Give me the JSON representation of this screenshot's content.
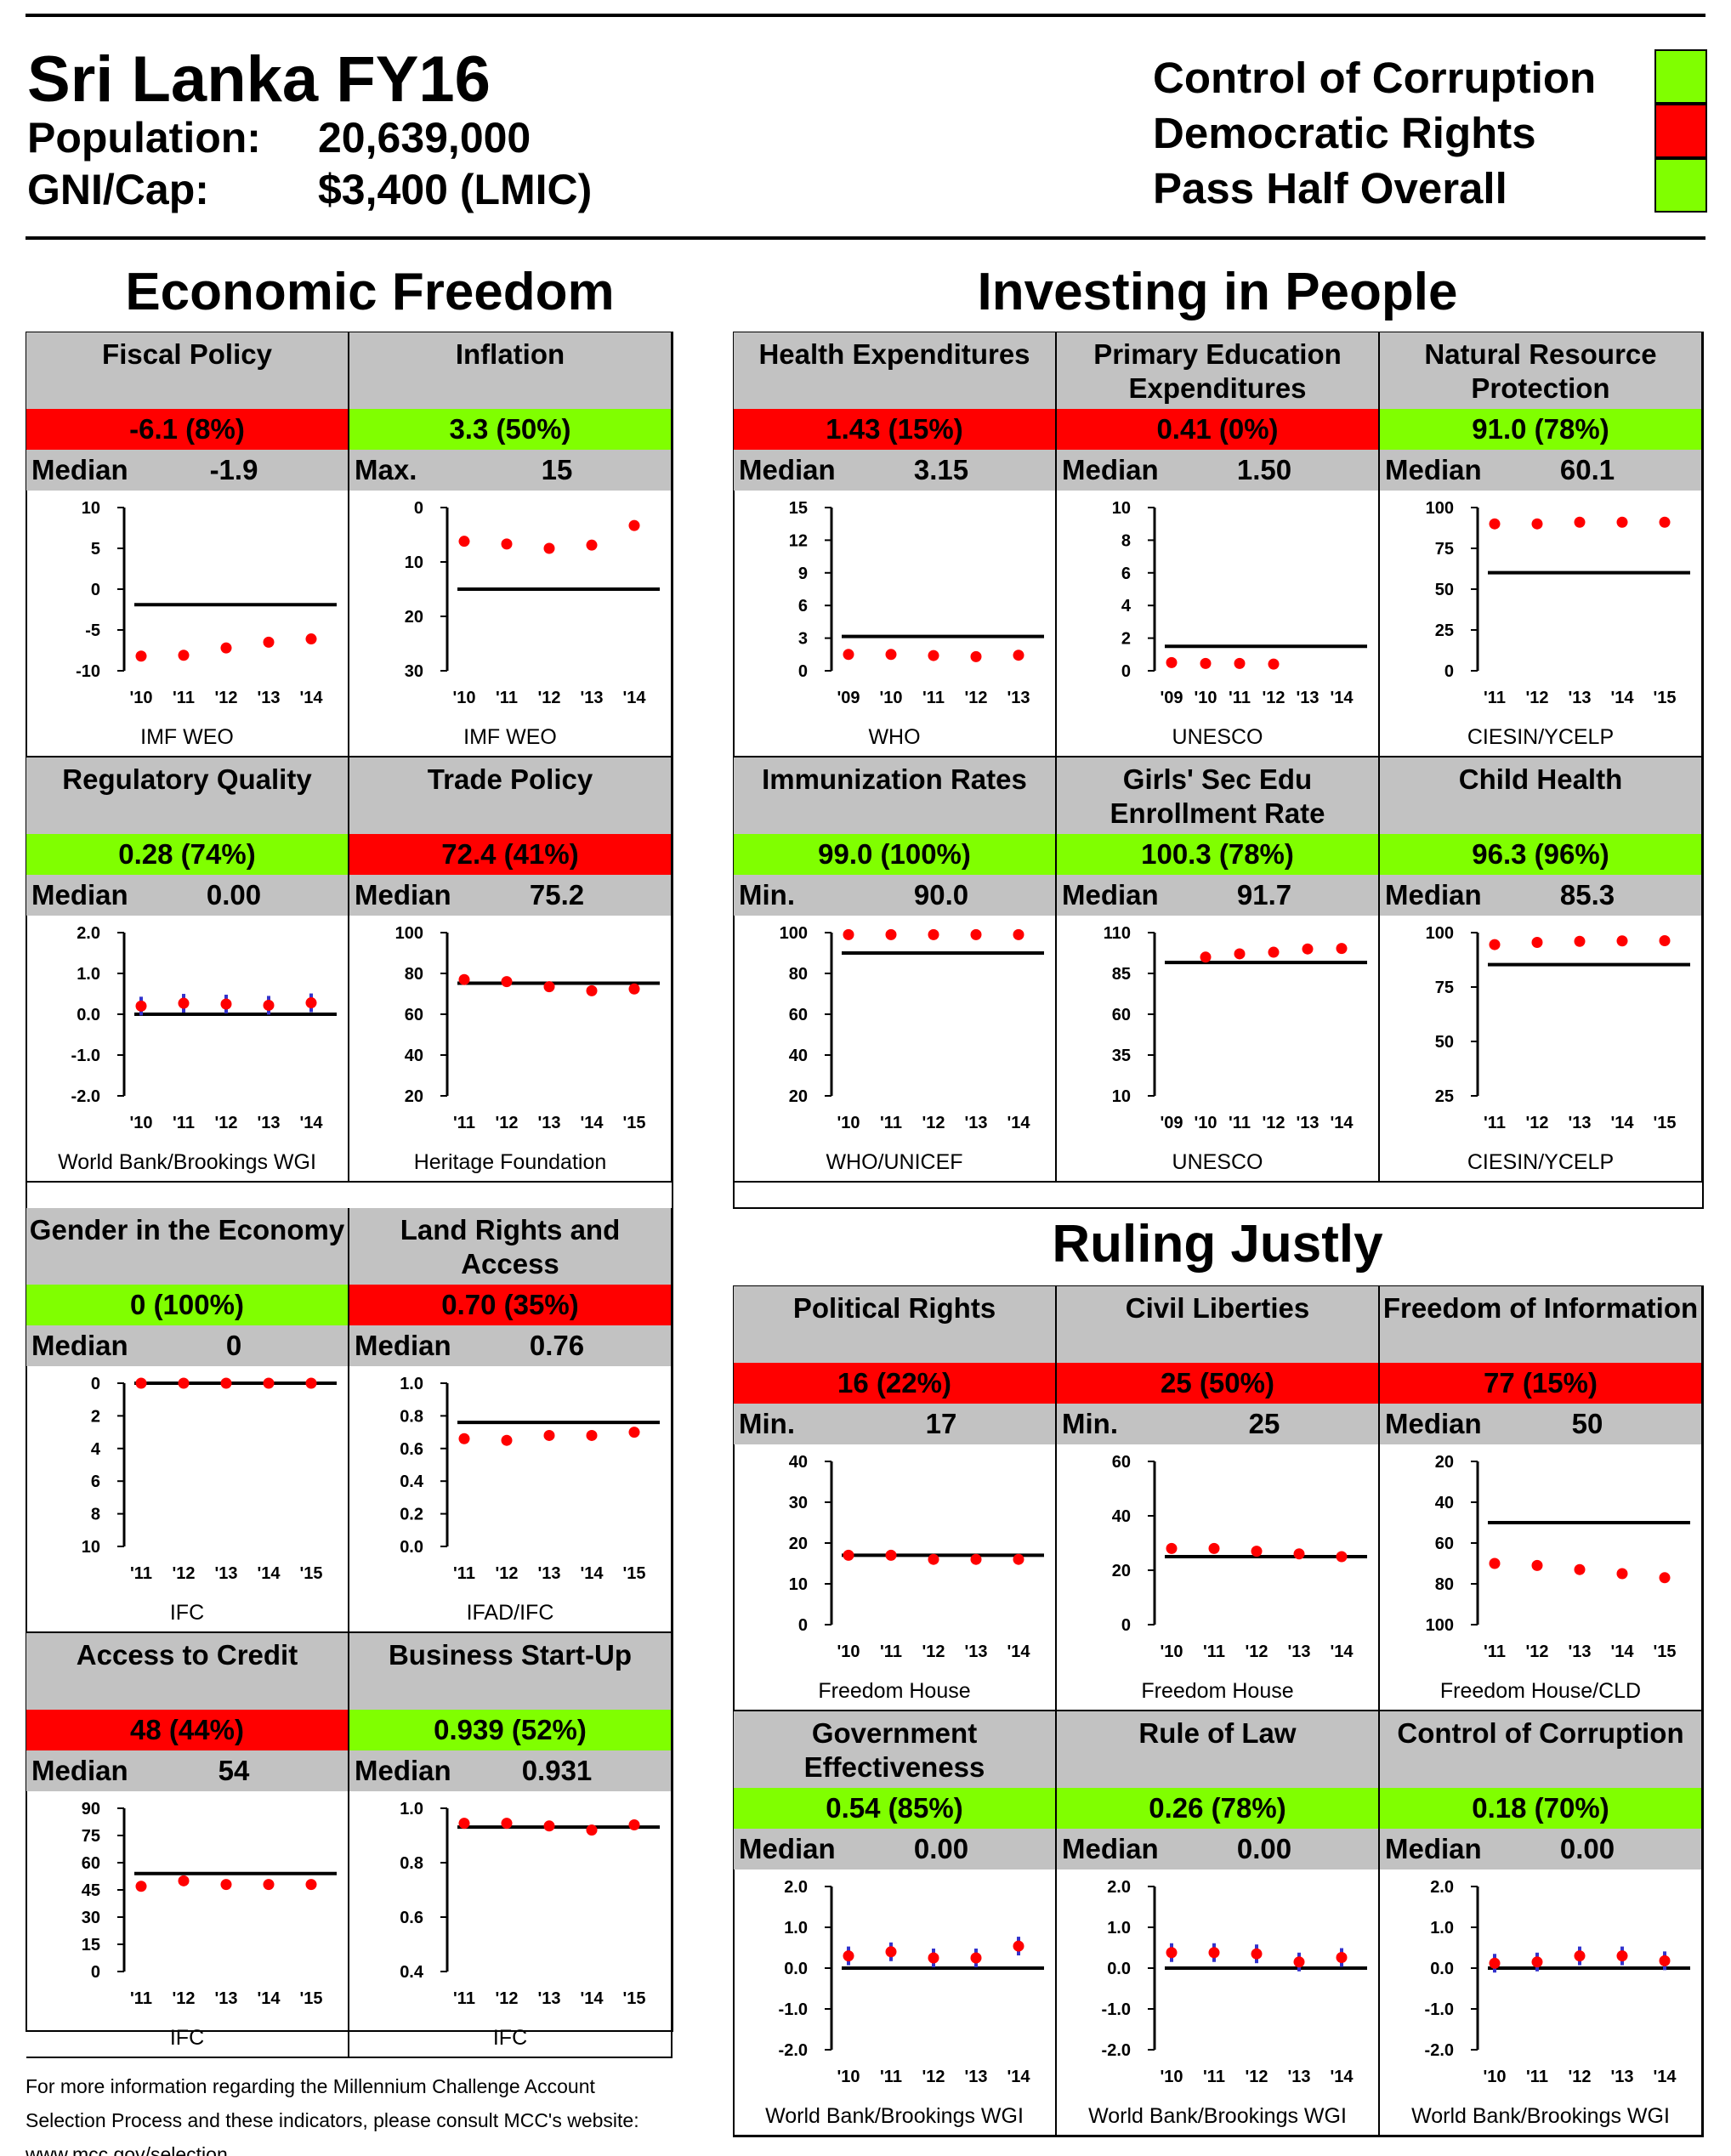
{
  "header": {
    "title": "Sri Lanka FY16",
    "population_label": "Population:",
    "population_value": "20,639,000",
    "gni_label": "GNI/Cap:",
    "gni_value": "$3,400 (LMIC)"
  },
  "status": [
    {
      "label": "Control of Corruption",
      "color": "#80ff00"
    },
    {
      "label": "Democratic Rights",
      "color": "#ff0000"
    },
    {
      "label": "Pass Half Overall",
      "color": "#80ff00"
    }
  ],
  "sections": {
    "economic_freedom": "Economic Freedom",
    "investing_in_people": "Investing in People",
    "ruling_justly": "Ruling Justly"
  },
  "colors": {
    "pass": "#80ff00",
    "fail": "#ff0000",
    "marker": "#ff0000",
    "error_bar": "#3333cc",
    "gray": "#c2c2c2"
  },
  "footer": {
    "line1": "For more information regarding the Millennium Challenge Account",
    "line2": "Selection Process and these indicators, please consult MCC's website:",
    "line3": "www.mcc.gov/selection"
  },
  "chart_data": [
    {
      "id": "fiscal",
      "type": "scatter",
      "title": "Fiscal Policy",
      "score": "-6.1 (8%)",
      "pass": false,
      "ref_label": "Median",
      "ref_value": "-1.9",
      "threshold": -1.9,
      "x": [
        "'10",
        "'11",
        "'12",
        "'13",
        "'14"
      ],
      "values": [
        -8.2,
        -8.1,
        -7.2,
        -6.5,
        -6.1
      ],
      "yticks": [
        "10",
        "5",
        "0",
        "-5",
        "-10"
      ],
      "ylim": [
        -10,
        10
      ],
      "inverted": false,
      "error_bars": false,
      "source": "IMF WEO"
    },
    {
      "id": "inflation",
      "type": "scatter",
      "title": "Inflation",
      "score": "3.3 (50%)",
      "pass": true,
      "ref_label": "Max.",
      "ref_value": "15",
      "threshold": 15,
      "x": [
        "'10",
        "'11",
        "'12",
        "'13",
        "'14"
      ],
      "values": [
        6.2,
        6.7,
        7.5,
        6.9,
        3.3
      ],
      "yticks": [
        "0",
        "10",
        "20",
        "30"
      ],
      "ylim": [
        0,
        30
      ],
      "inverted": true,
      "error_bars": false,
      "source": "IMF WEO"
    },
    {
      "id": "health",
      "type": "scatter",
      "title": "Health Expenditures",
      "score": "1.43 (15%)",
      "pass": false,
      "ref_label": "Median",
      "ref_value": "3.15",
      "threshold": 3.15,
      "x": [
        "'09",
        "'10",
        "'11",
        "'12",
        "'13"
      ],
      "values": [
        1.5,
        1.5,
        1.4,
        1.3,
        1.43
      ],
      "yticks": [
        "15",
        "12",
        "9",
        "6",
        "3",
        "0"
      ],
      "ylim": [
        0,
        15
      ],
      "inverted": false,
      "error_bars": false,
      "source": "WHO"
    },
    {
      "id": "primary_edu",
      "type": "scatter",
      "title": "Primary Education\nExpenditures",
      "score": "0.41 (0%)",
      "pass": false,
      "ref_label": "Median",
      "ref_value": "1.50",
      "threshold": 1.5,
      "x": [
        "'09",
        "'10",
        "'11",
        "'12",
        "'13",
        "'14"
      ],
      "values": [
        0.5,
        0.45,
        0.45,
        0.41,
        null,
        null
      ],
      "yticks": [
        "10",
        "8",
        "6",
        "4",
        "2",
        "0"
      ],
      "ylim": [
        0,
        10
      ],
      "inverted": false,
      "error_bars": false,
      "source": "UNESCO"
    },
    {
      "id": "natural_resource",
      "type": "scatter",
      "title": "Natural Resource\nProtection",
      "score": "91.0 (78%)",
      "pass": true,
      "ref_label": "Median",
      "ref_value": "60.1",
      "threshold": 60.1,
      "x": [
        "'11",
        "'12",
        "'13",
        "'14",
        "'15"
      ],
      "values": [
        90.0,
        90.0,
        91.0,
        91.0,
        91.0
      ],
      "yticks": [
        "100",
        "75",
        "50",
        "25",
        "0"
      ],
      "ylim": [
        0,
        100
      ],
      "inverted": false,
      "error_bars": false,
      "source": "CIESIN/YCELP"
    },
    {
      "id": "regulatory",
      "type": "scatter",
      "title": "Regulatory Quality",
      "score": "0.28 (74%)",
      "pass": true,
      "ref_label": "Median",
      "ref_value": "0.00",
      "threshold": 0,
      "x": [
        "'10",
        "'11",
        "'12",
        "'13",
        "'14"
      ],
      "values": [
        0.2,
        0.27,
        0.25,
        0.22,
        0.28
      ],
      "yticks": [
        "2.0",
        "1.0",
        "0.0",
        "-1.0",
        "-2.0"
      ],
      "ylim": [
        -2,
        2
      ],
      "inverted": false,
      "error_bars": true,
      "source": "World Bank/Brookings WGI"
    },
    {
      "id": "trade",
      "type": "scatter",
      "title": "Trade Policy",
      "score": "72.4 (41%)",
      "pass": false,
      "ref_label": "Median",
      "ref_value": "75.2",
      "threshold": 75.2,
      "x": [
        "'11",
        "'12",
        "'13",
        "'14",
        "'15"
      ],
      "values": [
        77.0,
        76.0,
        73.5,
        71.5,
        72.4
      ],
      "yticks": [
        "100",
        "80",
        "60",
        "40",
        "20"
      ],
      "ylim": [
        20,
        100
      ],
      "inverted": false,
      "error_bars": false,
      "source": "Heritage Foundation"
    },
    {
      "id": "immunization",
      "type": "scatter",
      "title": "Immunization Rates",
      "score": "99.0 (100%)",
      "pass": true,
      "ref_label": "Min.",
      "ref_value": "90.0",
      "threshold": 90,
      "x": [
        "'10",
        "'11",
        "'12",
        "'13",
        "'14"
      ],
      "values": [
        99.0,
        99.0,
        99.0,
        99.0,
        99.0
      ],
      "yticks": [
        "100",
        "80",
        "60",
        "40",
        "20"
      ],
      "ylim": [
        20,
        100
      ],
      "inverted": false,
      "error_bars": false,
      "source": "WHO/UNICEF"
    },
    {
      "id": "girls_edu",
      "type": "scatter",
      "title": "Girls' Sec Edu\nEnrollment Rate",
      "score": "100.3 (78%)",
      "pass": true,
      "ref_label": "Median",
      "ref_value": "91.7",
      "threshold": 91.7,
      "x": [
        "'09",
        "'10",
        "'11",
        "'12",
        "'13",
        "'14"
      ],
      "values": [
        null,
        95.0,
        97.0,
        98.0,
        100.0,
        100.3
      ],
      "yticks": [
        "110",
        "85",
        "60",
        "35",
        "10"
      ],
      "ylim": [
        10,
        110
      ],
      "inverted": false,
      "error_bars": false,
      "source": "UNESCO"
    },
    {
      "id": "child_health",
      "type": "scatter",
      "title": "Child Health",
      "score": "96.3 (96%)",
      "pass": true,
      "ref_label": "Median",
      "ref_value": "85.3",
      "threshold": 85.3,
      "x": [
        "'11",
        "'12",
        "'13",
        "'14",
        "'15"
      ],
      "values": [
        94.5,
        95.5,
        96.0,
        96.2,
        96.3
      ],
      "yticks": [
        "100",
        "75",
        "50",
        "25"
      ],
      "ylim": [
        25,
        100
      ],
      "inverted": false,
      "error_bars": false,
      "source": "CIESIN/YCELP"
    },
    {
      "id": "gender",
      "type": "scatter",
      "title": "Gender in the Economy",
      "score": "0 (100%)",
      "pass": true,
      "ref_label": "Median",
      "ref_value": "0",
      "threshold": 0,
      "x": [
        "'11",
        "'12",
        "'13",
        "'14",
        "'15"
      ],
      "values": [
        0,
        0,
        0,
        0,
        0
      ],
      "yticks": [
        "0",
        "2",
        "4",
        "6",
        "8",
        "10"
      ],
      "ylim": [
        0,
        10
      ],
      "inverted": true,
      "error_bars": false,
      "source": "IFC"
    },
    {
      "id": "land_rights",
      "type": "scatter",
      "title": "Land Rights and\nAccess",
      "score": "0.70 (35%)",
      "pass": false,
      "ref_label": "Median",
      "ref_value": "0.76",
      "threshold": 0.76,
      "x": [
        "'11",
        "'12",
        "'13",
        "'14",
        "'15"
      ],
      "values": [
        0.66,
        0.65,
        0.68,
        0.68,
        0.7
      ],
      "yticks": [
        "1.0",
        "0.8",
        "0.6",
        "0.4",
        "0.2",
        "0.0"
      ],
      "ylim": [
        0,
        1
      ],
      "inverted": false,
      "error_bars": false,
      "source": "IFAD/IFC"
    },
    {
      "id": "political_rights",
      "type": "scatter",
      "title": "Political Rights",
      "score": "16 (22%)",
      "pass": false,
      "ref_label": "Min.",
      "ref_value": "17",
      "threshold": 17,
      "x": [
        "'10",
        "'11",
        "'12",
        "'13",
        "'14"
      ],
      "values": [
        17,
        17,
        16,
        16,
        16
      ],
      "yticks": [
        "40",
        "30",
        "20",
        "10",
        "0"
      ],
      "ylim": [
        0,
        40
      ],
      "inverted": false,
      "error_bars": false,
      "source": "Freedom House"
    },
    {
      "id": "civil_liberties",
      "type": "scatter",
      "title": "Civil Liberties",
      "score": "25 (50%)",
      "pass": false,
      "ref_label": "Min.",
      "ref_value": "25",
      "threshold": 25,
      "x": [
        "'10",
        "'11",
        "'12",
        "'13",
        "'14"
      ],
      "values": [
        28,
        28,
        27,
        26,
        25
      ],
      "yticks": [
        "60",
        "40",
        "20",
        "0"
      ],
      "ylim": [
        0,
        60
      ],
      "inverted": false,
      "error_bars": false,
      "source": "Freedom House"
    },
    {
      "id": "freedom_info",
      "type": "scatter",
      "title": "Freedom of Information",
      "score": "77 (15%)",
      "pass": false,
      "ref_label": "Median",
      "ref_value": "50",
      "threshold": 50,
      "x": [
        "'11",
        "'12",
        "'13",
        "'14",
        "'15"
      ],
      "values": [
        70,
        71,
        73,
        75,
        77
      ],
      "yticks": [
        "20",
        "40",
        "60",
        "80",
        "100"
      ],
      "ylim": [
        20,
        100
      ],
      "inverted": true,
      "error_bars": false,
      "source": "Freedom House/CLD"
    },
    {
      "id": "access_credit",
      "type": "scatter",
      "title": "Access to Credit",
      "score": "48 (44%)",
      "pass": false,
      "ref_label": "Median",
      "ref_value": "54",
      "threshold": 54,
      "x": [
        "'11",
        "'12",
        "'13",
        "'14",
        "'15"
      ],
      "values": [
        47,
        50,
        48,
        48,
        48
      ],
      "yticks": [
        "90",
        "75",
        "60",
        "45",
        "30",
        "15",
        "0"
      ],
      "ylim": [
        0,
        90
      ],
      "inverted": false,
      "error_bars": false,
      "source": "IFC"
    },
    {
      "id": "business_startup",
      "type": "scatter",
      "title": "Business Start-Up",
      "score": "0.939 (52%)",
      "pass": true,
      "ref_label": "Median",
      "ref_value": "0.931",
      "threshold": 0.931,
      "x": [
        "'11",
        "'12",
        "'13",
        "'14",
        "'15"
      ],
      "values": [
        0.945,
        0.945,
        0.935,
        0.92,
        0.939
      ],
      "yticks": [
        "1.0",
        "0.8",
        "0.6",
        "0.4"
      ],
      "ylim": [
        0.4,
        1.0
      ],
      "inverted": false,
      "error_bars": false,
      "source": "IFC"
    },
    {
      "id": "gov_effectiveness",
      "type": "scatter",
      "title": "Government\nEffectiveness",
      "score": "0.54 (85%)",
      "pass": true,
      "ref_label": "Median",
      "ref_value": "0.00",
      "threshold": 0,
      "x": [
        "'10",
        "'11",
        "'12",
        "'13",
        "'14"
      ],
      "values": [
        0.3,
        0.4,
        0.25,
        0.25,
        0.54
      ],
      "yticks": [
        "2.0",
        "1.0",
        "0.0",
        "-1.0",
        "-2.0"
      ],
      "ylim": [
        -2,
        2
      ],
      "inverted": false,
      "error_bars": true,
      "source": "World Bank/Brookings WGI"
    },
    {
      "id": "rule_of_law",
      "type": "scatter",
      "title": "Rule of Law",
      "score": "0.26 (78%)",
      "pass": true,
      "ref_label": "Median",
      "ref_value": "0.00",
      "threshold": 0,
      "x": [
        "'10",
        "'11",
        "'12",
        "'13",
        "'14"
      ],
      "values": [
        0.38,
        0.38,
        0.35,
        0.15,
        0.26
      ],
      "yticks": [
        "2.0",
        "1.0",
        "0.0",
        "-1.0",
        "-2.0"
      ],
      "ylim": [
        -2,
        2
      ],
      "inverted": false,
      "error_bars": true,
      "source": "World Bank/Brookings WGI"
    },
    {
      "id": "control_corruption",
      "type": "scatter",
      "title": "Control of Corruption",
      "score": "0.18 (70%)",
      "pass": true,
      "ref_label": "Median",
      "ref_value": "0.00",
      "threshold": 0,
      "x": [
        "'10",
        "'11",
        "'12",
        "'13",
        "'14"
      ],
      "values": [
        0.12,
        0.15,
        0.3,
        0.3,
        0.18
      ],
      "yticks": [
        "2.0",
        "1.0",
        "0.0",
        "-1.0",
        "-2.0"
      ],
      "ylim": [
        -2,
        2
      ],
      "inverted": false,
      "error_bars": true,
      "source": "World Bank/Brookings WGI"
    }
  ]
}
